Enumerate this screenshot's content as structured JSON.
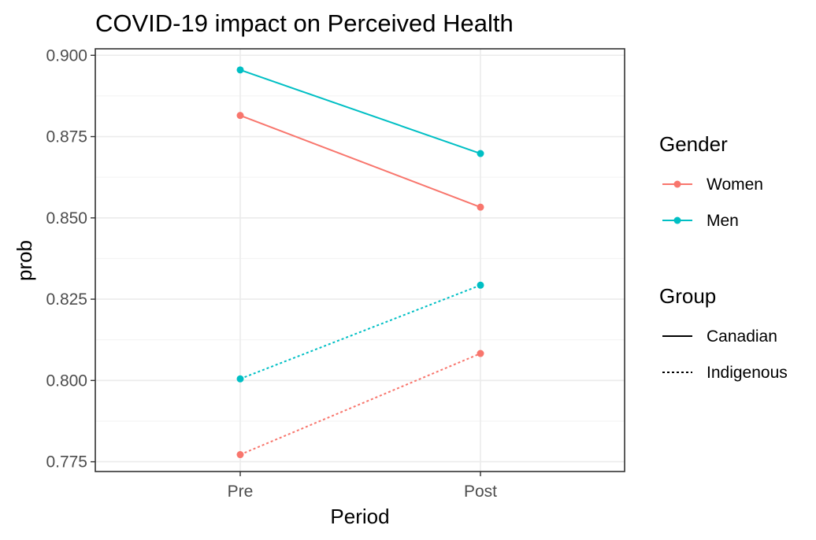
{
  "chart_data": {
    "type": "line",
    "title": "COVID-19 impact on Perceived Health",
    "xlabel": "Period",
    "ylabel": "prob",
    "categories": [
      "Pre",
      "Post"
    ],
    "ylim": [
      0.772,
      0.902
    ],
    "y_ticks": [
      "0.775",
      "0.800",
      "0.825",
      "0.850",
      "0.875",
      "0.900"
    ],
    "grid": true,
    "legend_position": "right",
    "series": [
      {
        "gender": "Women",
        "group": "Canadian",
        "color": "#F8766D",
        "linetype": "solid",
        "values": [
          0.8815,
          0.8533
        ]
      },
      {
        "gender": "Men",
        "group": "Canadian",
        "color": "#00BFC4",
        "linetype": "solid",
        "values": [
          0.8955,
          0.8698
        ]
      },
      {
        "gender": "Women",
        "group": "Indigenous",
        "color": "#F8766D",
        "linetype": "dotted",
        "values": [
          0.7772,
          0.8083
        ]
      },
      {
        "gender": "Men",
        "group": "Indigenous",
        "color": "#00BFC4",
        "linetype": "dotted",
        "values": [
          0.8005,
          0.8293
        ]
      }
    ],
    "legends": {
      "gender": {
        "title": "Gender",
        "items": [
          {
            "label": "Women",
            "color": "#F8766D"
          },
          {
            "label": "Men",
            "color": "#00BFC4"
          }
        ]
      },
      "group": {
        "title": "Group",
        "items": [
          {
            "label": "Canadian",
            "linetype": "solid"
          },
          {
            "label": "Indigenous",
            "linetype": "dotted"
          }
        ]
      }
    }
  }
}
